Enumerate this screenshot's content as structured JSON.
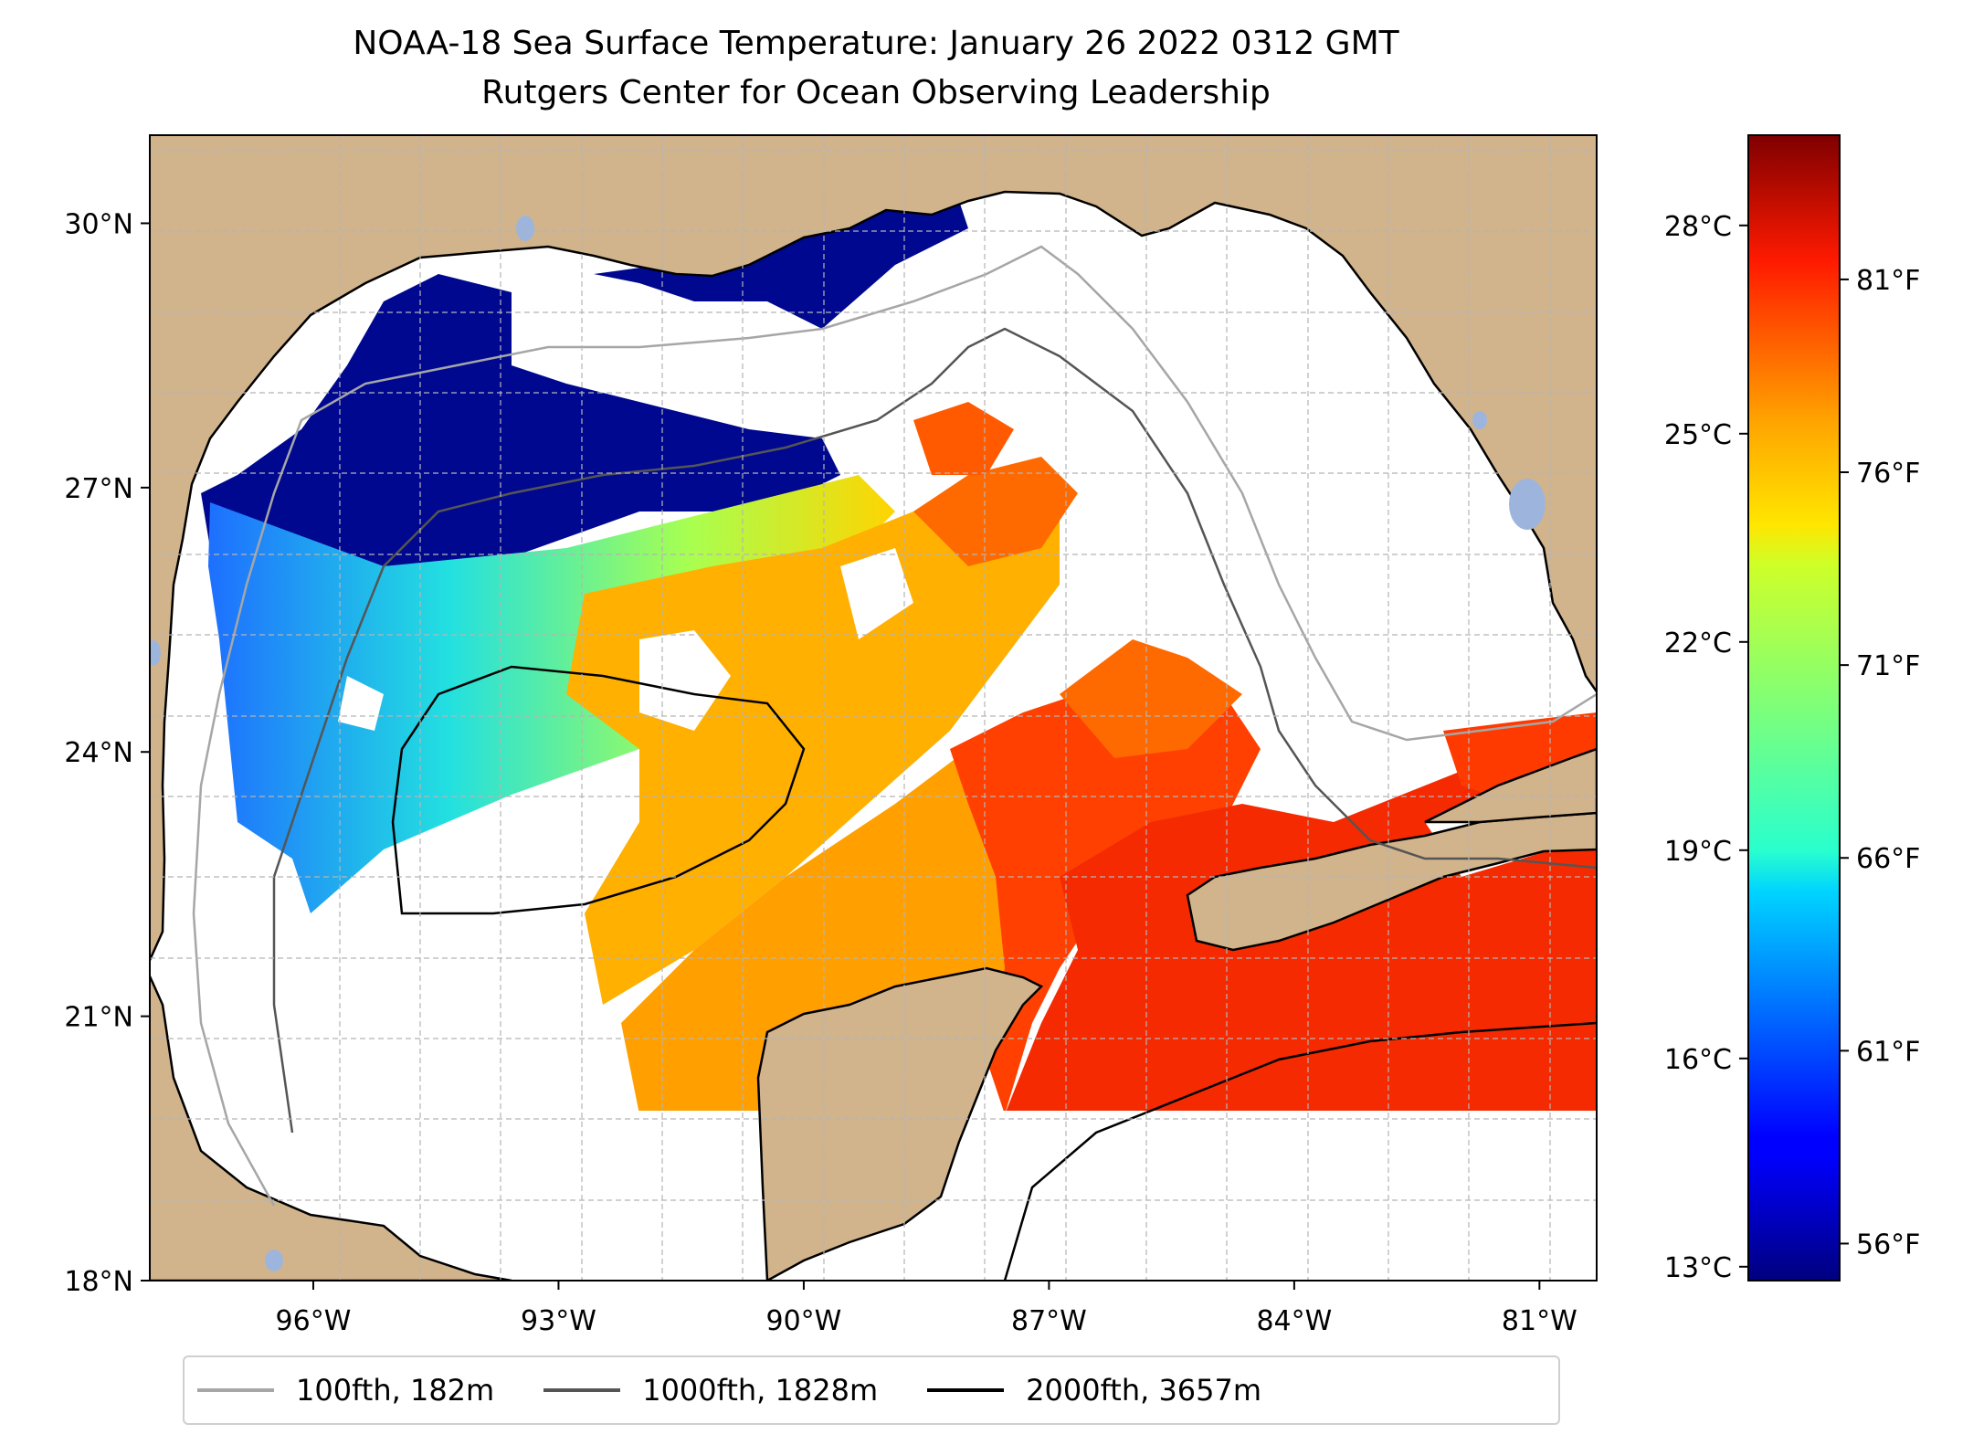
{
  "title": {
    "line1": "NOAA-18 Sea Surface Temperature: January 26 2022 0312 GMT",
    "line2": "Rutgers Center for Ocean Observing Leadership"
  },
  "map": {
    "lon_range": [
      -98.0,
      -80.3
    ],
    "lat_range": [
      18.0,
      31.0
    ],
    "grid": true,
    "lon_ticks": [
      {
        "lon": -96,
        "label": "96°W"
      },
      {
        "lon": -93,
        "label": "93°W"
      },
      {
        "lon": -90,
        "label": "90°W"
      },
      {
        "lon": -87,
        "label": "87°W"
      },
      {
        "lon": -84,
        "label": "84°W"
      },
      {
        "lon": -81,
        "label": "81°W"
      }
    ],
    "lat_ticks": [
      {
        "lat": 30,
        "label": "30°N"
      },
      {
        "lat": 27,
        "label": "27°N"
      },
      {
        "lat": 24,
        "label": "24°N"
      },
      {
        "lat": 21,
        "label": "21°N"
      },
      {
        "lat": 18,
        "label": "18°N"
      }
    ],
    "colors": {
      "land": "#d2b48c",
      "lakes": "#9db5dc",
      "ocean_nodata": "#ffffff",
      "coast": "#000000"
    }
  },
  "colorbar": {
    "colormap": "jet",
    "range_c": [
      12.8,
      29.3
    ],
    "celsius_ticks": [
      {
        "value": 28,
        "label": "28°C"
      },
      {
        "value": 25,
        "label": "25°C"
      },
      {
        "value": 22,
        "label": "22°C"
      },
      {
        "value": 19,
        "label": "19°C"
      },
      {
        "value": 16,
        "label": "16°C"
      },
      {
        "value": 13,
        "label": "13°C"
      }
    ],
    "fahrenheit_ticks": [
      {
        "value": 81,
        "label": "81°F"
      },
      {
        "value": 76,
        "label": "76°F"
      },
      {
        "value": 71,
        "label": "71°F"
      },
      {
        "value": 66,
        "label": "66°F"
      },
      {
        "value": 61,
        "label": "61°F"
      },
      {
        "value": 56,
        "label": "56°F"
      }
    ]
  },
  "legend": {
    "position": "bottom-center",
    "items": [
      {
        "label": "100fth, 182m",
        "color": "#a6a6a6"
      },
      {
        "label": "1000fth, 1828m",
        "color": "#555555"
      },
      {
        "label": "2000fth, 3657m",
        "color": "#000000"
      }
    ]
  }
}
